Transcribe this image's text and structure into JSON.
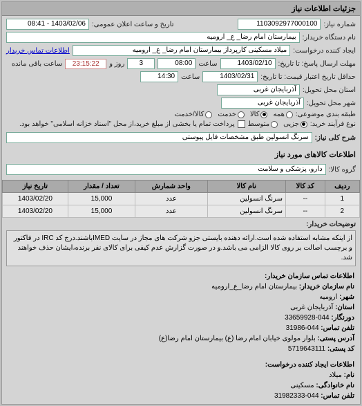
{
  "panel_title": "جزئیات اطلاعات نیاز",
  "form": {
    "req_no_label": "شماره نیاز:",
    "req_no": "1103092977000100",
    "pub_date_label": "تاریخ و ساعت اعلان عمومی:",
    "pub_date": "1403/02/06 - 08:41",
    "buyer_org_label": "نام دستگاه خریدار:",
    "buyer_org": "بیمارستان امام رضا_ ع_ ارومیه",
    "creator_label": "ایجاد کننده درخواست:",
    "creator": "میلاد مسکینی کارپرداز بیمارستان امام رضا_ ع_ ارومیه",
    "buyer_contact_link": "اطلاعات تماس خریدار",
    "deadline_label": "مهلت ارسال پاسخ: تا تاریخ:",
    "deadline_date": "1403/02/10",
    "deadline_time_label": "ساعت",
    "deadline_time": "08:00",
    "days_label": "روز و",
    "days_left": "3",
    "remain_label": "ساعت باقی مانده",
    "countdown": "23:15:22",
    "validity_label": "حداقل تاریخ اعتبار قیمت: تا تاریخ:",
    "validity_date": "1403/02/31",
    "validity_time_label": "ساعت",
    "validity_time": "14:30",
    "province_label": "استان محل تحویل:",
    "province": "آذربایجان غربی",
    "city_label": "شهر محل تحویل:",
    "city": "آذربایجان غربی",
    "class_label": "طبقه بندی موضوعی:",
    "class_all": "همه",
    "class_goods": "کالا",
    "class_service": "خدمت",
    "class_goods_service": "کالا/خدمت",
    "process_label": "نوع فرآیند خرید:",
    "proc_small": "جزیی",
    "proc_medium": "متوسط",
    "proc_note": "پرداخت تمام یا بخشی از مبلغ خرید،از محل \"اسناد خزانه اسلامی\" خواهد بود.",
    "need_title_label": "شرح کلی نیاز:",
    "need_title": "سرنگ انسولین طبق مشخصات فایل پیوستی"
  },
  "items_section": "اطلاعات کالاهای مورد نیاز",
  "group_label": "گروه کالا:",
  "group": "دارو، پزشکی و سلامت",
  "table": {
    "headers": [
      "ردیف",
      "کد کالا",
      "نام کالا",
      "واحد شمارش",
      "تعداد / مقدار",
      "تاریخ نیاز"
    ],
    "rows": [
      [
        "1",
        "--",
        "سرنگ انسولین",
        "عدد",
        "15,000",
        "1403/02/20"
      ],
      [
        "2",
        "--",
        "سرنگ انسولین",
        "عدد",
        "15,000",
        "1403/02/20"
      ]
    ]
  },
  "buyer_note_label": "توضیحات خریدار:",
  "buyer_note": "از اینکه مشابه استفاده شده است.ارائه دهنده بایستی جزو شرکت های مجاز در سایت IMEDباشند.درج کد IRC در فاکتور و برچسب اصالت بر روی کالا الزامی می باشد.و در صورت گزارش عدم کیفی برای کالای نفر برنده،ایشان حذف خواهند شد.",
  "contact_buyer": {
    "title": "اطلاعات تماس سازمان خریدار:",
    "org_label": "نام سازمان خریدار:",
    "org": "بیمارستان امام رضا_ع_ارومیه",
    "city_label": "شهر:",
    "city": "ارومیه",
    "province_label": "استان:",
    "province": "آذربایجان غربی",
    "pre_label": "دورنگار:",
    "pre": "044-33659928",
    "phone_label": "تلفن تماس:",
    "phone": "044-31986",
    "addr_label": "آدرس پستی:",
    "addr": "بلوار مولوی خیابان امام رضا (ع) بیمارستان امام رضا(ع)",
    "postal_label": "کد پستی:",
    "postal": "5719643111"
  },
  "contact_creator": {
    "title": "اطلاعات ایجاد کننده درخواست:",
    "fname_label": "نام:",
    "fname": "میلاد",
    "lname_label": "نام خانوادگی:",
    "lname": "مسکینی",
    "phone_label": "تلفن تماس:",
    "phone": "044-31982333"
  }
}
